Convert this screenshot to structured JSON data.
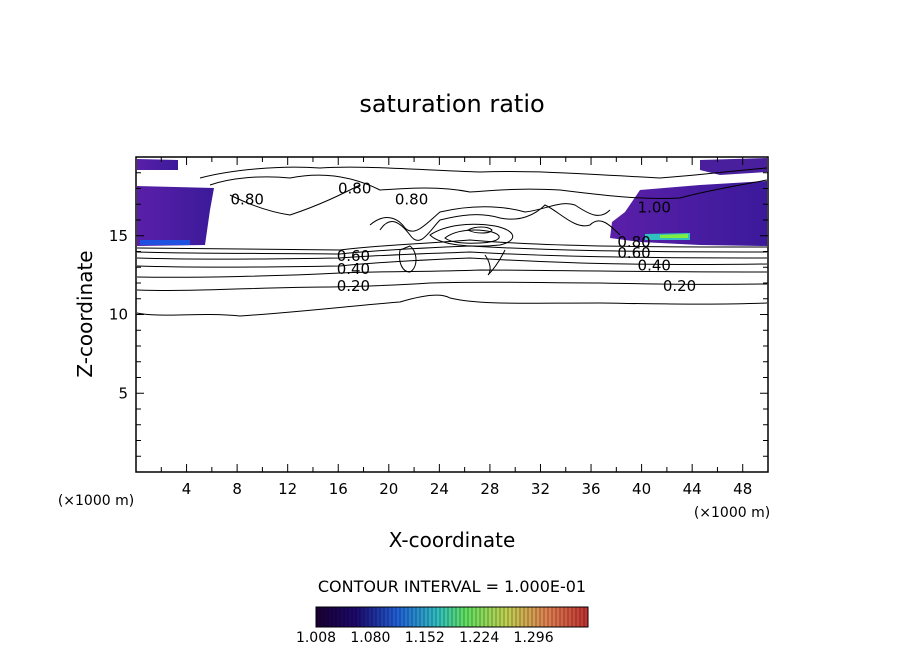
{
  "chart_data": {
    "type": "contour",
    "title": "saturation ratio",
    "xlabel": "X-coordinate",
    "ylabel": "Z-coordinate",
    "x_unit": "(×1000 m)",
    "y_unit": "(×1000 m)",
    "xlim": [
      0,
      50
    ],
    "ylim": [
      0,
      20
    ],
    "x_ticks": [
      4,
      8,
      12,
      16,
      20,
      24,
      28,
      32,
      36,
      40,
      44,
      48
    ],
    "y_ticks": [
      5,
      10,
      15
    ],
    "contour_labels": [
      {
        "text": "0.80",
        "x": 8.8,
        "y": 17.3
      },
      {
        "text": "0.80",
        "x": 17.3,
        "y": 18.0
      },
      {
        "text": "0.80",
        "x": 21.8,
        "y": 17.3
      },
      {
        "text": "1.00",
        "x": 41.0,
        "y": 16.8
      },
      {
        "text": "0.60",
        "x": 17.2,
        "y": 13.7
      },
      {
        "text": "0.40",
        "x": 17.2,
        "y": 12.9
      },
      {
        "text": "0.20",
        "x": 17.2,
        "y": 11.8
      },
      {
        "text": "0.80",
        "x": 39.4,
        "y": 14.6
      },
      {
        "text": "0.60",
        "x": 39.4,
        "y": 13.9
      },
      {
        "text": "0.40",
        "x": 41.0,
        "y": 13.1
      },
      {
        "text": "0.20",
        "x": 43.0,
        "y": 11.8
      }
    ],
    "contour_interval_text": "CONTOUR INTERVAL = 1.000E-01",
    "colorbar": {
      "min": 1.008,
      "max": 1.368,
      "tick_labels": [
        "1.008",
        "1.080",
        "1.152",
        "1.224",
        "1.296"
      ],
      "colors": [
        "#1a0033",
        "#1c0a6e",
        "#2020b0",
        "#2050e0",
        "#2a90d8",
        "#30c0c0",
        "#40e080",
        "#80f040",
        "#c0e040",
        "#e0c040",
        "#e08040",
        "#d04040",
        "#c03030"
      ]
    }
  }
}
